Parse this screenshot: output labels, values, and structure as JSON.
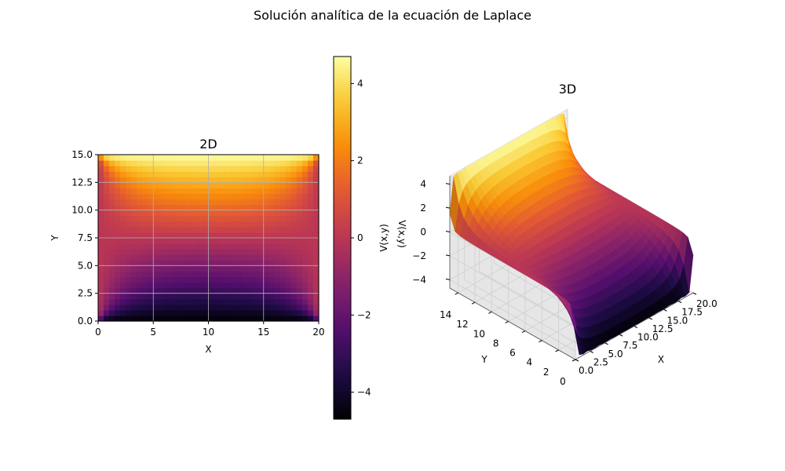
{
  "figure": {
    "suptitle": "Solución analítica de la ecuación de Laplace"
  },
  "chart_data": [
    {
      "type": "heatmap",
      "title": "2D",
      "xlabel": "X",
      "ylabel": "Y",
      "xlim": [
        0,
        20
      ],
      "ylim": [
        0,
        15
      ],
      "xticks": [
        "0",
        "5",
        "10",
        "15",
        "20"
      ],
      "yticks": [
        "0.0",
        "2.5",
        "5.0",
        "7.5",
        "10.0",
        "12.5",
        "15.0"
      ],
      "grid": true,
      "colormap": "inferno",
      "vrange": [
        -4.7,
        4.7
      ],
      "boundary": {
        "top": 4.7,
        "bottom": -4.7,
        "left": 0,
        "right": 0
      },
      "colorbar": {
        "label": "V(x,y)",
        "ticks": [
          "−4",
          "−2",
          "0",
          "2",
          "4"
        ],
        "tick_values": [
          -4,
          -2,
          0,
          2,
          4
        ]
      }
    },
    {
      "type": "surface",
      "title": "3D",
      "xlabel": "X",
      "ylabel": "Y",
      "zlabel": "V(x,y)",
      "xlim": [
        0,
        20
      ],
      "ylim": [
        0,
        15
      ],
      "zlim": [
        -4.7,
        4.7
      ],
      "xticks": [
        "0.0",
        "2.5",
        "5.0",
        "7.5",
        "10.0",
        "12.5",
        "15.0",
        "17.5",
        "20.0"
      ],
      "yticks": [
        "0",
        "2",
        "4",
        "6",
        "8",
        "10",
        "12",
        "14"
      ],
      "zticks": [
        "−4",
        "−2",
        "0",
        "2",
        "4"
      ],
      "colormap": "inferno"
    }
  ]
}
